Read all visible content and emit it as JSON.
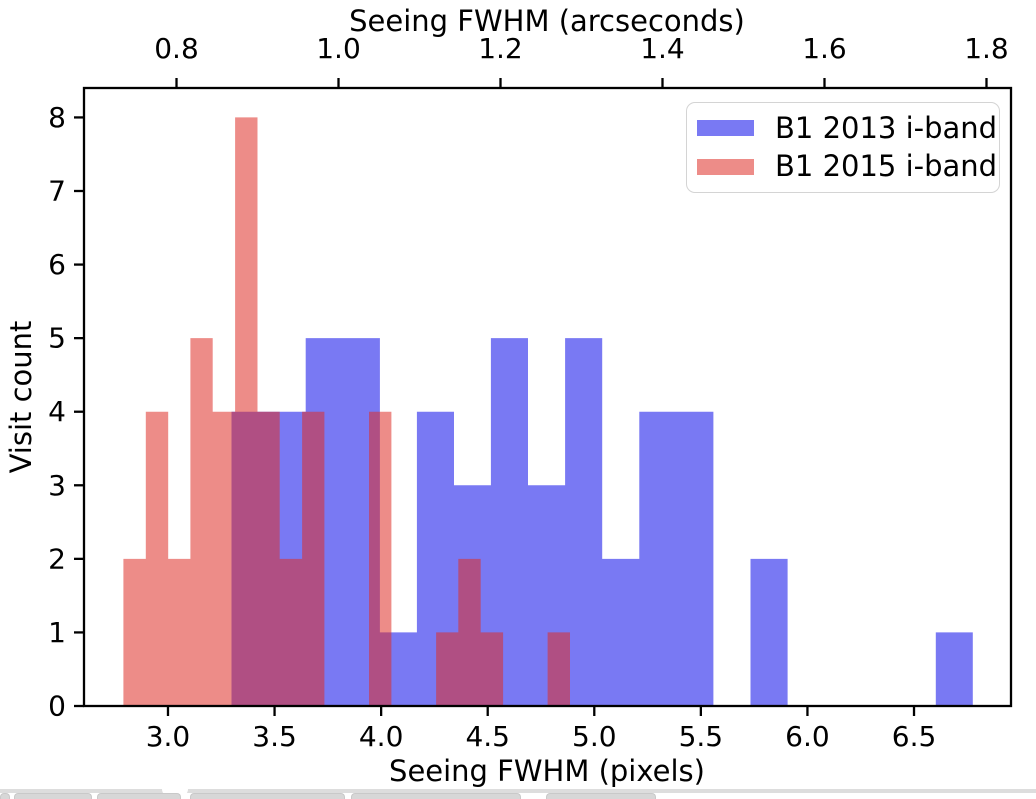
{
  "chart_data": {
    "type": "histogram",
    "histtype": "stepfilled-overlaid",
    "xlabel_bottom": "Seeing FWHM (pixels)",
    "xlabel_top": "Seeing FWHM (arcseconds)",
    "ylabel": "Visit count",
    "xlim": [
      2.606,
      6.955
    ],
    "ylim": [
      0,
      8.4
    ],
    "grid": false,
    "legend_position": "upper right",
    "arcsec_per_pixel": 0.2632,
    "x_ticks_bottom": {
      "labels": [
        "3.0",
        "3.5",
        "4.0",
        "4.5",
        "5.0",
        "5.5",
        "6.0",
        "6.5"
      ],
      "values": [
        3.0,
        3.5,
        4.0,
        4.5,
        5.0,
        5.5,
        6.0,
        6.5
      ]
    },
    "x_ticks_top": {
      "labels": [
        "0.8",
        "1.0",
        "1.2",
        "1.4",
        "1.6",
        "1.8"
      ],
      "values_arcsec": [
        0.8,
        1.0,
        1.2,
        1.4,
        1.6,
        1.8
      ],
      "values_pixels": [
        3.04,
        3.8,
        4.56,
        5.32,
        6.08,
        6.84
      ]
    },
    "y_ticks": {
      "labels": [
        "0",
        "1",
        "2",
        "3",
        "4",
        "5",
        "6",
        "7",
        "8"
      ],
      "values": [
        0,
        1,
        2,
        3,
        4,
        5,
        6,
        7,
        8
      ]
    },
    "series": [
      {
        "name": "B1 2013 i-band",
        "fill": "rgba(58,58,237,0.68)",
        "apparent_color": "#7b80f2",
        "bin_width": 0.174,
        "bin_edges": [
          3.298,
          3.472,
          3.646,
          3.82,
          3.994,
          4.168,
          4.342,
          4.515,
          4.689,
          4.863,
          5.037,
          5.211,
          5.385,
          5.559,
          5.733,
          5.907,
          6.081,
          6.255,
          6.428,
          6.602,
          6.776
        ],
        "counts": [
          4,
          4,
          5,
          5,
          1,
          4,
          3,
          5,
          3,
          5,
          2,
          4,
          4,
          0,
          2,
          0,
          0,
          0,
          0,
          1
        ],
        "total_visits": 52
      },
      {
        "name": "B1 2015 i-band",
        "fill": "rgba(222,45,38,0.55)",
        "apparent_color": "#ee8784",
        "bin_width": 0.105,
        "bin_edges": [
          2.791,
          2.896,
          3.001,
          3.105,
          3.21,
          3.315,
          3.42,
          3.524,
          3.629,
          3.734,
          3.839,
          3.943,
          4.048,
          4.153,
          4.258,
          4.362,
          4.467,
          4.572,
          4.677,
          4.781,
          4.886
        ],
        "counts": [
          2,
          4,
          2,
          5,
          4,
          8,
          4,
          2,
          4,
          0,
          0,
          4,
          0,
          0,
          1,
          2,
          1,
          0,
          0,
          1
        ],
        "total_visits": 44
      }
    ],
    "overlap_apparent_color": "#b0487c"
  },
  "legend": {
    "entries": [
      {
        "label": "B1 2013 i-band",
        "swatch": "rgba(58,58,237,0.68)"
      },
      {
        "label": "B1 2015 i-band",
        "swatch": "rgba(222,45,38,0.55)"
      }
    ]
  }
}
